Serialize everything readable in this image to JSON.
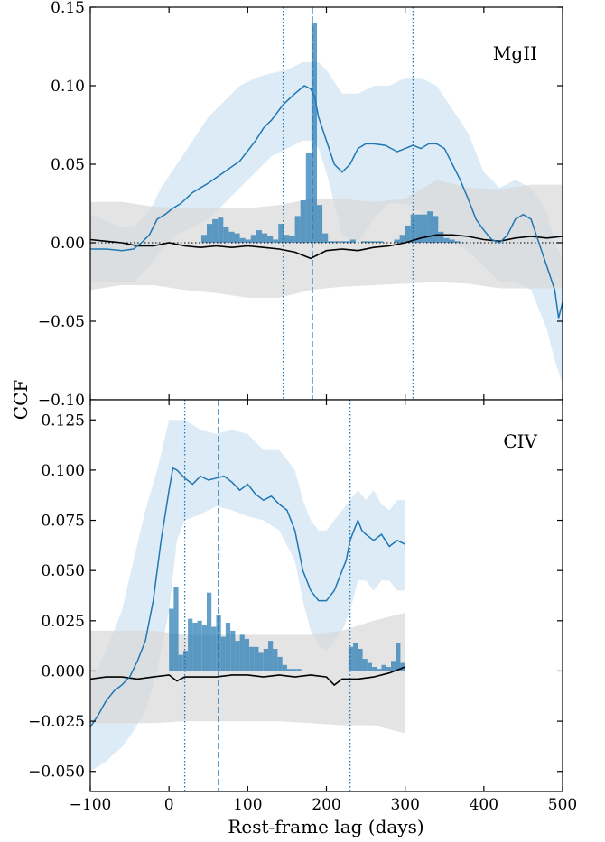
{
  "chart_data": {
    "type": "line",
    "xlabel": "Rest-frame lag (days)",
    "ylabel": "CCF",
    "xlim": [
      -100,
      500
    ],
    "x_ticks": [
      "−100",
      "0",
      "100",
      "200",
      "300",
      "400",
      "500"
    ],
    "colors": {
      "ccf": "#1f77b4",
      "ccf_band": "#d6e7f4",
      "null": "#000000",
      "null_band": "#d8d8d8",
      "hist": "#1f77b4"
    },
    "panels": [
      {
        "label": "MgII",
        "ylim": [
          -0.1,
          0.15
        ],
        "yticks": [
          -0.1,
          -0.05,
          0.0,
          0.05,
          0.1,
          0.15
        ],
        "ytick_labels": [
          "−0.10",
          "−0.05",
          "0.00",
          "0.05",
          "0.10",
          "0.15"
        ],
        "median_lag": 182,
        "lag_interval": [
          145,
          310
        ],
        "ccf": {
          "x": [
            -100,
            -80,
            -60,
            -45,
            -35,
            -25,
            -15,
            -5,
            5,
            15,
            30,
            50,
            70,
            90,
            110,
            120,
            130,
            145,
            160,
            172,
            180,
            185,
            190,
            200,
            210,
            220,
            230,
            240,
            250,
            260,
            275,
            290,
            300,
            310,
            320,
            330,
            340,
            350,
            360,
            370,
            380,
            390,
            400,
            410,
            420,
            430,
            440,
            450,
            460,
            470,
            480,
            490,
            495,
            500
          ],
          "y": [
            -0.004,
            -0.004,
            -0.005,
            -0.004,
            0.0,
            0.005,
            0.015,
            0.018,
            0.022,
            0.025,
            0.032,
            0.038,
            0.045,
            0.052,
            0.065,
            0.073,
            0.078,
            0.088,
            0.095,
            0.1,
            0.098,
            0.093,
            0.08,
            0.065,
            0.05,
            0.045,
            0.05,
            0.06,
            0.063,
            0.063,
            0.062,
            0.058,
            0.06,
            0.062,
            0.06,
            0.063,
            0.063,
            0.06,
            0.05,
            0.04,
            0.028,
            0.015,
            0.008,
            0.002,
            0.0,
            0.005,
            0.015,
            0.018,
            0.015,
            0.0,
            -0.015,
            -0.03,
            -0.048,
            -0.038
          ]
        },
        "ccf_band": {
          "x": [
            -100,
            -80,
            -60,
            -45,
            -35,
            -25,
            -10,
            10,
            30,
            50,
            70,
            90,
            110,
            130,
            150,
            170,
            180,
            190,
            200,
            220,
            240,
            260,
            280,
            300,
            320,
            340,
            360,
            380,
            400,
            420,
            440,
            460,
            480,
            490,
            500
          ],
          "upper": [
            0.018,
            0.014,
            0.01,
            0.01,
            0.015,
            0.02,
            0.035,
            0.05,
            0.065,
            0.08,
            0.09,
            0.1,
            0.105,
            0.108,
            0.11,
            0.115,
            0.115,
            0.115,
            0.11,
            0.095,
            0.095,
            0.1,
            0.1,
            0.105,
            0.105,
            0.1,
            0.085,
            0.07,
            0.045,
            0.035,
            0.04,
            0.035,
            0.02,
            0.0,
            -0.01
          ],
          "lower": [
            -0.025,
            -0.025,
            -0.025,
            -0.025,
            -0.02,
            -0.015,
            -0.005,
            0.005,
            0.01,
            0.015,
            0.025,
            0.035,
            0.045,
            0.055,
            0.06,
            0.065,
            0.065,
            0.06,
            0.045,
            0.005,
            0.0,
            0.015,
            0.025,
            0.025,
            0.02,
            0.01,
            0.0,
            -0.005,
            -0.015,
            -0.025,
            -0.025,
            -0.03,
            -0.055,
            -0.075,
            -0.09
          ]
        },
        "null": {
          "x": [
            -100,
            -80,
            -60,
            -40,
            -20,
            0,
            20,
            40,
            60,
            80,
            100,
            120,
            140,
            160,
            180,
            200,
            220,
            240,
            260,
            280,
            300,
            320,
            340,
            360,
            380,
            400,
            420,
            440,
            460,
            480,
            500
          ],
          "y": [
            0.002,
            0.001,
            0.0,
            -0.002,
            -0.002,
            0.0,
            -0.002,
            -0.003,
            -0.002,
            -0.003,
            -0.002,
            -0.003,
            -0.004,
            -0.006,
            -0.01,
            -0.005,
            -0.004,
            -0.005,
            -0.003,
            -0.002,
            0.0,
            0.003,
            0.005,
            0.005,
            0.004,
            0.002,
            0.001,
            0.003,
            0.004,
            0.003,
            0.004
          ]
        },
        "null_band": {
          "x": [
            -100,
            -60,
            -20,
            20,
            60,
            100,
            140,
            180,
            220,
            260,
            300,
            340,
            380,
            420,
            460,
            500
          ],
          "upper": [
            0.026,
            0.026,
            0.023,
            0.022,
            0.022,
            0.022,
            0.024,
            0.028,
            0.028,
            0.026,
            0.028,
            0.04,
            0.035,
            0.034,
            0.037,
            0.037
          ],
          "lower": [
            -0.03,
            -0.027,
            -0.027,
            -0.03,
            -0.032,
            -0.035,
            -0.035,
            -0.03,
            -0.028,
            -0.027,
            -0.026,
            -0.025,
            -0.026,
            -0.029,
            -0.029,
            -0.029
          ]
        },
        "hist": {
          "bin_width": 7,
          "bins": [
            [
              41,
              0.005
            ],
            [
              48,
              0.012
            ],
            [
              55,
              0.015
            ],
            [
              62,
              0.016
            ],
            [
              69,
              0.01
            ],
            [
              76,
              0.007
            ],
            [
              83,
              0.006
            ],
            [
              90,
              0.003
            ],
            [
              97,
              0.002
            ],
            [
              104,
              0.005
            ],
            [
              111,
              0.008
            ],
            [
              118,
              0.006
            ],
            [
              125,
              0.004
            ],
            [
              132,
              0.002
            ],
            [
              139,
              0.012
            ],
            [
              146,
              0.005
            ],
            [
              153,
              0.004
            ],
            [
              160,
              0.017
            ],
            [
              167,
              0.027
            ],
            [
              174,
              0.057
            ],
            [
              181,
              0.14
            ],
            [
              188,
              0.024
            ],
            [
              195,
              0.006
            ],
            [
              202,
              0.001
            ],
            [
              209,
              0.001
            ],
            [
              216,
              0.001
            ],
            [
              223,
              0.001
            ],
            [
              230,
              0.002
            ],
            [
              244,
              0.001
            ],
            [
              251,
              0.001
            ],
            [
              258,
              0.001
            ],
            [
              265,
              0.001
            ],
            [
              286,
              0.002
            ],
            [
              293,
              0.005
            ],
            [
              300,
              0.011
            ],
            [
              307,
              0.018
            ],
            [
              314,
              0.018
            ],
            [
              321,
              0.018
            ],
            [
              328,
              0.02
            ],
            [
              335,
              0.017
            ],
            [
              342,
              0.007
            ],
            [
              349,
              0.003
            ],
            [
              356,
              0.002
            ],
            [
              363,
              0.001
            ]
          ]
        }
      },
      {
        "label": "CIV",
        "ylim": [
          -0.06,
          0.135
        ],
        "yticks": [
          -0.05,
          -0.025,
          0.0,
          0.025,
          0.05,
          0.075,
          0.1,
          0.125
        ],
        "ytick_labels": [
          "−0.050",
          "−0.025",
          "0.000",
          "0.025",
          "0.050",
          "0.075",
          "0.100",
          "0.125"
        ],
        "median_lag": 63,
        "lag_interval": [
          20,
          230
        ],
        "ccf": {
          "x": [
            -100,
            -90,
            -80,
            -70,
            -60,
            -50,
            -40,
            -30,
            -20,
            -10,
            0,
            5,
            10,
            20,
            30,
            40,
            50,
            60,
            70,
            80,
            90,
            100,
            110,
            120,
            130,
            140,
            150,
            160,
            170,
            180,
            190,
            200,
            210,
            220,
            225,
            230,
            235,
            240,
            245,
            250,
            260,
            270,
            280,
            290,
            300
          ],
          "y": [
            -0.028,
            -0.022,
            -0.015,
            -0.01,
            -0.007,
            -0.003,
            0.005,
            0.015,
            0.035,
            0.065,
            0.09,
            0.101,
            0.1,
            0.096,
            0.093,
            0.097,
            0.095,
            0.096,
            0.097,
            0.094,
            0.09,
            0.093,
            0.088,
            0.085,
            0.087,
            0.083,
            0.08,
            0.07,
            0.05,
            0.04,
            0.035,
            0.035,
            0.04,
            0.05,
            0.055,
            0.065,
            0.07,
            0.075,
            0.07,
            0.068,
            0.065,
            0.068,
            0.062,
            0.065,
            0.063
          ]
        },
        "ccf_band": {
          "x": [
            -100,
            -80,
            -60,
            -45,
            -30,
            -15,
            0,
            10,
            20,
            40,
            60,
            80,
            100,
            120,
            140,
            160,
            170,
            180,
            190,
            200,
            210,
            220,
            230,
            240,
            250,
            260,
            270,
            280,
            290,
            300
          ],
          "upper": [
            -0.005,
            0.01,
            0.03,
            0.055,
            0.08,
            0.1,
            0.125,
            0.125,
            0.125,
            0.12,
            0.118,
            0.12,
            0.118,
            0.11,
            0.11,
            0.1,
            0.085,
            0.075,
            0.07,
            0.07,
            0.075,
            0.08,
            0.085,
            0.09,
            0.085,
            0.09,
            0.083,
            0.08,
            0.085,
            0.085
          ],
          "lower": [
            -0.05,
            -0.045,
            -0.038,
            -0.03,
            -0.02,
            0.0,
            0.03,
            0.065,
            0.075,
            0.078,
            0.082,
            0.08,
            0.077,
            0.075,
            0.07,
            0.055,
            0.035,
            0.02,
            0.013,
            0.01,
            0.015,
            0.02,
            0.03,
            0.045,
            0.045,
            0.04,
            0.045,
            0.045,
            0.04,
            0.04
          ]
        },
        "null": {
          "x": [
            -100,
            -80,
            -60,
            -40,
            -20,
            0,
            10,
            20,
            40,
            60,
            80,
            100,
            120,
            140,
            160,
            180,
            200,
            210,
            220,
            240,
            260,
            280,
            300
          ],
          "y": [
            -0.004,
            -0.003,
            -0.003,
            -0.004,
            -0.003,
            -0.002,
            -0.005,
            -0.003,
            -0.003,
            -0.003,
            -0.002,
            -0.002,
            -0.003,
            -0.002,
            -0.003,
            -0.002,
            -0.003,
            -0.007,
            -0.004,
            -0.004,
            -0.003,
            -0.001,
            0.002
          ]
        },
        "null_band": {
          "x": [
            -100,
            -60,
            -20,
            20,
            60,
            100,
            140,
            180,
            220,
            260,
            300
          ],
          "upper": [
            0.02,
            0.02,
            0.02,
            0.018,
            0.018,
            0.018,
            0.018,
            0.018,
            0.02,
            0.025,
            0.029
          ],
          "lower": [
            -0.026,
            -0.026,
            -0.026,
            -0.025,
            -0.025,
            -0.025,
            -0.025,
            -0.026,
            -0.027,
            -0.027,
            -0.031
          ]
        },
        "hist": {
          "bin_width": 6,
          "bins": [
            [
              0,
              0.031
            ],
            [
              6,
              0.042
            ],
            [
              12,
              0.008
            ],
            [
              18,
              0.01
            ],
            [
              24,
              0.026
            ],
            [
              30,
              0.024
            ],
            [
              36,
              0.025
            ],
            [
              42,
              0.023
            ],
            [
              48,
              0.039
            ],
            [
              54,
              0.022
            ],
            [
              60,
              0.028
            ],
            [
              66,
              0.017
            ],
            [
              72,
              0.024
            ],
            [
              78,
              0.02
            ],
            [
              84,
              0.015
            ],
            [
              90,
              0.018
            ],
            [
              96,
              0.016
            ],
            [
              102,
              0.012
            ],
            [
              108,
              0.012
            ],
            [
              114,
              0.009
            ],
            [
              120,
              0.011
            ],
            [
              126,
              0.015
            ],
            [
              132,
              0.011
            ],
            [
              138,
              0.007
            ],
            [
              144,
              0.003
            ],
            [
              150,
              0.001
            ],
            [
              156,
              0.001
            ],
            [
              162,
              0.001
            ],
            [
              228,
              0.012
            ],
            [
              234,
              0.014
            ],
            [
              240,
              0.011
            ],
            [
              246,
              0.006
            ],
            [
              252,
              0.004
            ],
            [
              258,
              0.002
            ],
            [
              264,
              0.001
            ],
            [
              270,
              0.003
            ],
            [
              276,
              0.002
            ],
            [
              282,
              0.005
            ],
            [
              288,
              0.014
            ],
            [
              294,
              0.004
            ]
          ]
        }
      }
    ]
  }
}
